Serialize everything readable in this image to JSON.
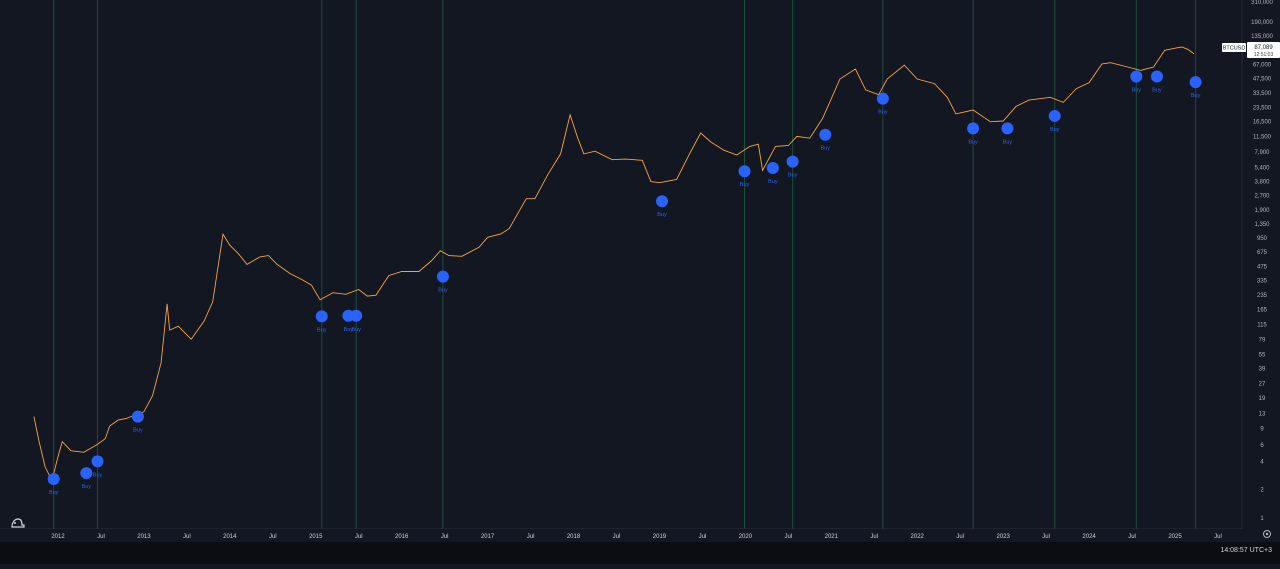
{
  "chart_data": {
    "type": "line",
    "symbol": "BTCUSD",
    "last_price": "87,089",
    "countdown": "12:51:03",
    "y_scale": "log",
    "ylim": [
      1,
      310000
    ],
    "xlim": [
      2011.55,
      2025.75
    ],
    "y_ticks": [
      "310,000",
      "190,000",
      "135,000",
      "95,000",
      "67,000",
      "47,500",
      "33,500",
      "23,500",
      "16,500",
      "11,500",
      "7,900",
      "5,400",
      "3,800",
      "2,700",
      "1,900",
      "1,350",
      "950",
      "675",
      "475",
      "335",
      "235",
      "165",
      "115",
      "79",
      "55",
      "39",
      "27",
      "19",
      "13",
      "9",
      "6",
      "4",
      "2",
      "1"
    ],
    "x_ticks": [
      {
        "label": "2012",
        "t": 2012.0
      },
      {
        "label": "Jul",
        "t": 2012.5
      },
      {
        "label": "2013",
        "t": 2013.0
      },
      {
        "label": "Jul",
        "t": 2013.5
      },
      {
        "label": "2014",
        "t": 2014.0
      },
      {
        "label": "Jul",
        "t": 2014.5
      },
      {
        "label": "2015",
        "t": 2015.0
      },
      {
        "label": "Jul",
        "t": 2015.5
      },
      {
        "label": "2016",
        "t": 2016.0
      },
      {
        "label": "Jul",
        "t": 2016.5
      },
      {
        "label": "2017",
        "t": 2017.0
      },
      {
        "label": "Jul",
        "t": 2017.5
      },
      {
        "label": "2018",
        "t": 2018.0
      },
      {
        "label": "Jul",
        "t": 2018.5
      },
      {
        "label": "2019",
        "t": 2019.0
      },
      {
        "label": "Jul",
        "t": 2019.5
      },
      {
        "label": "2020",
        "t": 2020.0
      },
      {
        "label": "Jul",
        "t": 2020.5
      },
      {
        "label": "2021",
        "t": 2021.0
      },
      {
        "label": "Jul",
        "t": 2021.5
      },
      {
        "label": "2022",
        "t": 2022.0
      },
      {
        "label": "Jul",
        "t": 2022.5
      },
      {
        "label": "2023",
        "t": 2023.0
      },
      {
        "label": "Jul",
        "t": 2023.5
      },
      {
        "label": "2024",
        "t": 2024.0
      },
      {
        "label": "Jul",
        "t": 2024.5
      },
      {
        "label": "2025",
        "t": 2025.0
      },
      {
        "label": "Jul",
        "t": 2025.5
      }
    ],
    "series": [
      {
        "points": [
          [
            2011.72,
            12
          ],
          [
            2011.78,
            6.5
          ],
          [
            2011.85,
            3.5
          ],
          [
            2011.93,
            2.5
          ],
          [
            2012.0,
            4.5
          ],
          [
            2012.05,
            6.5
          ],
          [
            2012.15,
            5.2
          ],
          [
            2012.3,
            5.0
          ],
          [
            2012.45,
            6.0
          ],
          [
            2012.55,
            7.0
          ],
          [
            2012.6,
            9.5
          ],
          [
            2012.7,
            11
          ],
          [
            2012.8,
            11.5
          ],
          [
            2012.9,
            12.5
          ],
          [
            2013.0,
            13.5
          ],
          [
            2013.1,
            20
          ],
          [
            2013.2,
            45
          ],
          [
            2013.27,
            190
          ],
          [
            2013.3,
            100
          ],
          [
            2013.4,
            110
          ],
          [
            2013.55,
            80
          ],
          [
            2013.7,
            125
          ],
          [
            2013.8,
            200
          ],
          [
            2013.92,
            1050
          ],
          [
            2014.0,
            800
          ],
          [
            2014.1,
            650
          ],
          [
            2014.2,
            500
          ],
          [
            2014.35,
            600
          ],
          [
            2014.45,
            620
          ],
          [
            2014.55,
            500
          ],
          [
            2014.7,
            400
          ],
          [
            2014.85,
            340
          ],
          [
            2014.95,
            300
          ],
          [
            2015.05,
            210
          ],
          [
            2015.2,
            250
          ],
          [
            2015.35,
            240
          ],
          [
            2015.5,
            270
          ],
          [
            2015.6,
            230
          ],
          [
            2015.7,
            235
          ],
          [
            2015.85,
            380
          ],
          [
            2016.0,
            420
          ],
          [
            2016.2,
            420
          ],
          [
            2016.35,
            550
          ],
          [
            2016.45,
            700
          ],
          [
            2016.55,
            620
          ],
          [
            2016.7,
            610
          ],
          [
            2016.9,
            760
          ],
          [
            2017.0,
            970
          ],
          [
            2017.15,
            1050
          ],
          [
            2017.25,
            1200
          ],
          [
            2017.45,
            2500
          ],
          [
            2017.55,
            2500
          ],
          [
            2017.7,
            4500
          ],
          [
            2017.85,
            7500
          ],
          [
            2017.96,
            19500
          ],
          [
            2018.05,
            11000
          ],
          [
            2018.12,
            7500
          ],
          [
            2018.25,
            8000
          ],
          [
            2018.45,
            6500
          ],
          [
            2018.6,
            6600
          ],
          [
            2018.8,
            6400
          ],
          [
            2018.9,
            3800
          ],
          [
            2019.0,
            3700
          ],
          [
            2019.2,
            4000
          ],
          [
            2019.35,
            7500
          ],
          [
            2019.48,
            12500
          ],
          [
            2019.6,
            10000
          ],
          [
            2019.75,
            8200
          ],
          [
            2019.9,
            7300
          ],
          [
            2020.05,
            9000
          ],
          [
            2020.15,
            9500
          ],
          [
            2020.2,
            5000
          ],
          [
            2020.35,
            9000
          ],
          [
            2020.5,
            9200
          ],
          [
            2020.6,
            11500
          ],
          [
            2020.75,
            11000
          ],
          [
            2020.9,
            18000
          ],
          [
            2021.0,
            29000
          ],
          [
            2021.1,
            47000
          ],
          [
            2021.28,
            60000
          ],
          [
            2021.4,
            36000
          ],
          [
            2021.55,
            32000
          ],
          [
            2021.65,
            47000
          ],
          [
            2021.85,
            66000
          ],
          [
            2022.0,
            47000
          ],
          [
            2022.2,
            42000
          ],
          [
            2022.35,
            30000
          ],
          [
            2022.45,
            20000
          ],
          [
            2022.65,
            22000
          ],
          [
            2022.85,
            16500
          ],
          [
            2023.0,
            16800
          ],
          [
            2023.15,
            24000
          ],
          [
            2023.3,
            28000
          ],
          [
            2023.55,
            30000
          ],
          [
            2023.7,
            26500
          ],
          [
            2023.85,
            37000
          ],
          [
            2024.0,
            43000
          ],
          [
            2024.15,
            68000
          ],
          [
            2024.25,
            70000
          ],
          [
            2024.45,
            63000
          ],
          [
            2024.6,
            58000
          ],
          [
            2024.75,
            63000
          ],
          [
            2024.88,
            95000
          ],
          [
            2025.0,
            100000
          ],
          [
            2025.08,
            103000
          ],
          [
            2025.15,
            97000
          ],
          [
            2025.22,
            87089
          ]
        ]
      }
    ],
    "buy_signals": [
      {
        "t": 2011.95,
        "price": 2.6,
        "label": "Buy"
      },
      {
        "t": 2012.33,
        "price": 3.0,
        "label": "Buy"
      },
      {
        "t": 2012.46,
        "price": 4.0,
        "label": "Buy"
      },
      {
        "t": 2012.93,
        "price": 12,
        "label": "Buy"
      },
      {
        "t": 2015.07,
        "price": 140,
        "label": "Buy"
      },
      {
        "t": 2015.38,
        "price": 142,
        "label": "Buy"
      },
      {
        "t": 2015.47,
        "price": 142,
        "label": "Buy"
      },
      {
        "t": 2016.48,
        "price": 370,
        "label": "Buy"
      },
      {
        "t": 2019.03,
        "price": 2350,
        "label": "Buy"
      },
      {
        "t": 2019.99,
        "price": 4900,
        "label": "Buy"
      },
      {
        "t": 2020.32,
        "price": 5300,
        "label": "Buy"
      },
      {
        "t": 2020.55,
        "price": 6200,
        "label": "Buy"
      },
      {
        "t": 2020.93,
        "price": 12000,
        "label": "Buy"
      },
      {
        "t": 2021.6,
        "price": 29000,
        "label": "Buy"
      },
      {
        "t": 2022.65,
        "price": 14000,
        "label": "Buy"
      },
      {
        "t": 2023.05,
        "price": 14000,
        "label": "Buy"
      },
      {
        "t": 2023.6,
        "price": 19000,
        "label": "Buy"
      },
      {
        "t": 2024.55,
        "price": 50000,
        "label": "Buy"
      },
      {
        "t": 2024.79,
        "price": 50000,
        "label": "Buy"
      },
      {
        "t": 2025.24,
        "price": 43500,
        "label": "Buy"
      }
    ],
    "vertical_markers": [
      2011.95,
      2012.46,
      2015.07,
      2015.47,
      2016.48,
      2019.99,
      2020.55,
      2021.6,
      2022.65,
      2023.6,
      2024.55,
      2025.24
    ],
    "colors": {
      "background": "#131722",
      "price_line": "#f7a440",
      "buy_marker": "#2962ff",
      "vertical_marker": "#1e4d3b",
      "price_tag_bg": "#ffffff"
    },
    "grid": false
  },
  "status": {
    "time": "14:08:57 UTC+3"
  }
}
